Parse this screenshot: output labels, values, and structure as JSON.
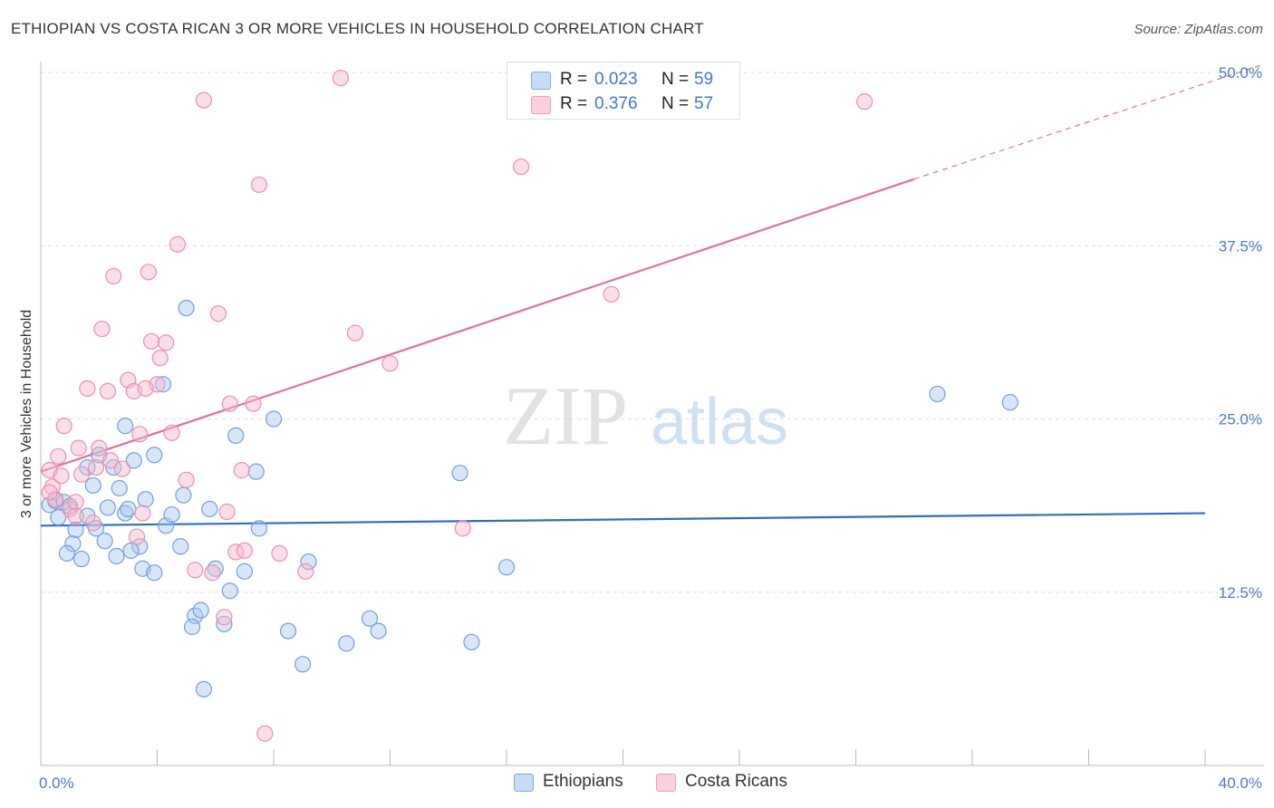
{
  "header": {
    "title": "ETHIOPIAN VS COSTA RICAN 3 OR MORE VEHICLES IN HOUSEHOLD CORRELATION CHART",
    "source": "Source: ZipAtlas.com"
  },
  "watermark": {
    "zip": "ZIP",
    "atlas": "atlas"
  },
  "legend": {
    "rows": [
      {
        "r_label": "R =",
        "r_value": "0.023",
        "n_label": "N =",
        "n_value": "59",
        "color": "#a9c8f0"
      },
      {
        "r_label": "R =",
        "r_value": "0.376",
        "n_label": "N =",
        "n_value": "57",
        "color": "#f6b9cb"
      }
    ]
  },
  "bottom_legend": {
    "items": [
      {
        "label": "Ethiopians",
        "color": "#a9c8f0"
      },
      {
        "label": "Costa Ricans",
        "color": "#f6b9cb"
      }
    ]
  },
  "chart_data": {
    "type": "scatter",
    "title": "ETHIOPIAN VS COSTA RICAN 3 OR MORE VEHICLES IN HOUSEHOLD CORRELATION CHART",
    "xlabel": "",
    "ylabel": "3 or more Vehicles in Household",
    "xlim": [
      0,
      40
    ],
    "ylim": [
      0,
      50
    ],
    "x_tick_labels": [
      "0.0%",
      "40.0%"
    ],
    "y_tick_labels": [
      "12.5%",
      "25.0%",
      "37.5%",
      "50.0%"
    ],
    "y_tick_values": [
      12.5,
      25.0,
      37.5,
      50.0
    ],
    "grid": true,
    "series": [
      {
        "name": "Ethiopians",
        "color": "#a9c8f0",
        "stroke": "#6e9fe0",
        "trend": {
          "x": [
            0,
            40
          ],
          "y": [
            17.3,
            18.2
          ],
          "color": "#2f6cc9"
        },
        "points": [
          [
            0.3,
            18.8
          ],
          [
            0.5,
            19.1
          ],
          [
            0.6,
            17.9
          ],
          [
            0.8,
            19.0
          ],
          [
            1.0,
            18.7
          ],
          [
            1.2,
            17.0
          ],
          [
            1.1,
            16.0
          ],
          [
            1.4,
            14.9
          ],
          [
            1.6,
            18.0
          ],
          [
            1.8,
            20.2
          ],
          [
            1.9,
            17.1
          ],
          [
            2.2,
            16.2
          ],
          [
            2.3,
            18.6
          ],
          [
            2.5,
            21.5
          ],
          [
            2.6,
            15.1
          ],
          [
            2.7,
            20.0
          ],
          [
            2.9,
            18.2
          ],
          [
            3.0,
            18.5
          ],
          [
            3.2,
            22.0
          ],
          [
            3.4,
            15.8
          ],
          [
            3.5,
            14.2
          ],
          [
            3.6,
            19.2
          ],
          [
            3.9,
            22.4
          ],
          [
            4.2,
            27.5
          ],
          [
            4.3,
            17.3
          ],
          [
            4.5,
            18.1
          ],
          [
            4.9,
            19.5
          ],
          [
            5.0,
            33.0
          ],
          [
            5.3,
            10.8
          ],
          [
            5.5,
            11.2
          ],
          [
            5.6,
            5.5
          ],
          [
            5.8,
            18.5
          ],
          [
            6.0,
            14.2
          ],
          [
            6.3,
            10.2
          ],
          [
            6.5,
            12.6
          ],
          [
            6.7,
            23.8
          ],
          [
            7.0,
            14.0
          ],
          [
            7.4,
            21.2
          ],
          [
            7.5,
            17.1
          ],
          [
            8.0,
            25.0
          ],
          [
            8.5,
            9.7
          ],
          [
            9.0,
            7.3
          ],
          [
            9.2,
            14.7
          ],
          [
            10.5,
            8.8
          ],
          [
            11.3,
            10.6
          ],
          [
            11.6,
            9.7
          ],
          [
            14.4,
            21.1
          ],
          [
            14.8,
            8.9
          ],
          [
            16.0,
            14.3
          ],
          [
            30.8,
            26.8
          ],
          [
            33.3,
            26.2
          ],
          [
            2.9,
            24.5
          ],
          [
            3.9,
            13.9
          ],
          [
            4.8,
            15.8
          ],
          [
            1.6,
            21.5
          ],
          [
            5.2,
            10.0
          ],
          [
            3.1,
            15.5
          ],
          [
            0.9,
            15.3
          ],
          [
            2.0,
            22.4
          ]
        ]
      },
      {
        "name": "Costa Ricans",
        "color": "#f6b9cb",
        "stroke": "#ea8fad",
        "trend": {
          "x": [
            0,
            30.0
          ],
          "y": [
            21.2,
            42.3
          ],
          "color": "#e0709a",
          "dashed_x": [
            30.0,
            40
          ],
          "dashed_y": [
            42.3,
            49.2
          ]
        },
        "points": [
          [
            0.3,
            21.3
          ],
          [
            0.4,
            20.1
          ],
          [
            0.5,
            19.2
          ],
          [
            0.6,
            22.3
          ],
          [
            0.7,
            20.9
          ],
          [
            0.8,
            24.5
          ],
          [
            1.0,
            18.5
          ],
          [
            1.2,
            19.0
          ],
          [
            1.3,
            22.9
          ],
          [
            1.4,
            21.0
          ],
          [
            1.6,
            27.2
          ],
          [
            1.8,
            17.5
          ],
          [
            1.9,
            21.5
          ],
          [
            2.0,
            22.9
          ],
          [
            2.1,
            31.5
          ],
          [
            2.3,
            27.0
          ],
          [
            2.4,
            22.0
          ],
          [
            2.5,
            35.3
          ],
          [
            2.8,
            21.4
          ],
          [
            3.0,
            27.8
          ],
          [
            3.2,
            27.0
          ],
          [
            3.3,
            16.5
          ],
          [
            3.4,
            23.9
          ],
          [
            3.5,
            18.2
          ],
          [
            3.7,
            35.6
          ],
          [
            3.8,
            30.6
          ],
          [
            4.0,
            27.5
          ],
          [
            4.1,
            29.4
          ],
          [
            4.3,
            30.5
          ],
          [
            4.5,
            24.0
          ],
          [
            4.7,
            37.6
          ],
          [
            5.0,
            20.6
          ],
          [
            5.3,
            14.1
          ],
          [
            5.6,
            48.0
          ],
          [
            5.9,
            13.9
          ],
          [
            6.1,
            32.6
          ],
          [
            6.3,
            10.7
          ],
          [
            6.5,
            26.1
          ],
          [
            6.7,
            15.4
          ],
          [
            6.9,
            21.3
          ],
          [
            7.0,
            15.5
          ],
          [
            7.3,
            26.1
          ],
          [
            7.5,
            41.9
          ],
          [
            7.7,
            2.3
          ],
          [
            8.2,
            15.3
          ],
          [
            9.1,
            14.0
          ],
          [
            10.3,
            49.6
          ],
          [
            10.8,
            31.2
          ],
          [
            12.0,
            29.0
          ],
          [
            14.5,
            17.1
          ],
          [
            16.5,
            43.2
          ],
          [
            19.6,
            34.0
          ],
          [
            28.3,
            47.9
          ],
          [
            0.3,
            19.7
          ],
          [
            3.6,
            27.2
          ],
          [
            1.2,
            18.0
          ],
          [
            6.4,
            18.3
          ]
        ]
      }
    ]
  }
}
